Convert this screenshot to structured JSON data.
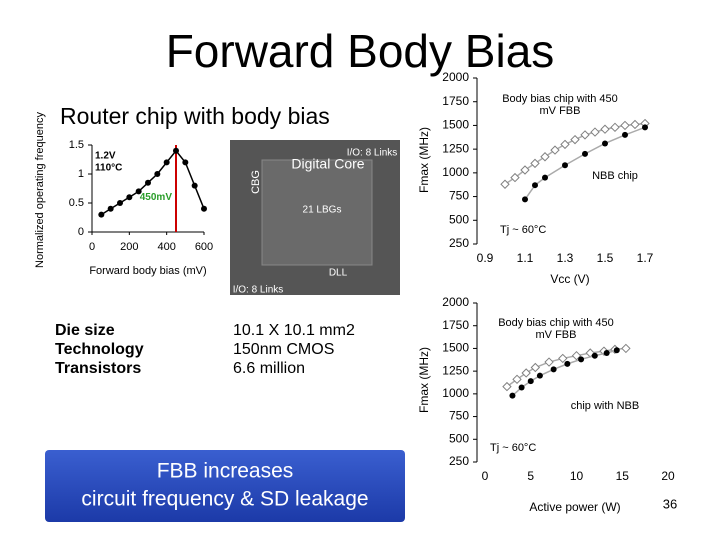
{
  "title": "Forward Body Bias",
  "subtitle": "Router chip with body bias",
  "die_labels": [
    "Digital Core",
    "I/O: 8 Links",
    "CBG",
    "21 LBGs",
    "DLL"
  ],
  "table": {
    "rows": [
      [
        "Die size",
        "10.1 X 10.1 mm2"
      ],
      [
        "Technology",
        "150nm CMOS"
      ],
      [
        "Transistors",
        "6.6 million"
      ]
    ]
  },
  "callout": {
    "lines": [
      "FBB increases",
      "circuit frequency & SD leakage"
    ]
  },
  "page_number": "36",
  "chart_data": [
    {
      "type": "line",
      "xlabel": "Forward body bias (mV)",
      "ylabel": "Normalized operating frequency",
      "annotations": [
        "1.2V",
        "110°C"
      ],
      "x": [
        50,
        100,
        150,
        200,
        250,
        300,
        350,
        400,
        450,
        500,
        550,
        600
      ],
      "values": [
        0.3,
        0.4,
        0.5,
        0.6,
        0.7,
        0.85,
        1.0,
        1.2,
        1.4,
        1.2,
        0.8,
        0.4
      ],
      "color": "#000000",
      "marker": "circle",
      "vline": {
        "value": 450,
        "label": "450mV",
        "color": "#cc0000"
      },
      "xlim": [
        0,
        600
      ],
      "xticks": [
        0,
        200,
        400,
        600
      ],
      "ylim": [
        0,
        1.5
      ],
      "yticks": [
        0,
        0.5,
        1,
        1.5
      ]
    },
    {
      "type": "scatter",
      "xlabel": "Vcc (V)",
      "ylabel": "Fmax (MHz)",
      "annotations": [
        "Tj ~ 60°C"
      ],
      "series": [
        {
          "name": "Body bias chip with 450 mV FBB",
          "color": "#808080",
          "marker": "open-diamond",
          "x": [
            1.0,
            1.05,
            1.1,
            1.15,
            1.2,
            1.25,
            1.3,
            1.35,
            1.4,
            1.45,
            1.5,
            1.55,
            1.6,
            1.65,
            1.7
          ],
          "values": [
            880,
            950,
            1030,
            1100,
            1170,
            1240,
            1300,
            1350,
            1400,
            1430,
            1460,
            1480,
            1500,
            1510,
            1520
          ]
        },
        {
          "name": "NBB chip",
          "color": "#000000",
          "marker": "circle",
          "x": [
            1.1,
            1.15,
            1.2,
            1.3,
            1.4,
            1.5,
            1.6,
            1.7
          ],
          "values": [
            720,
            870,
            950,
            1080,
            1200,
            1310,
            1400,
            1480
          ]
        }
      ],
      "xlim": [
        0.9,
        1.7
      ],
      "xticks": [
        0.9,
        1.1,
        1.3,
        1.5,
        1.7
      ],
      "ylim": [
        250,
        2000
      ],
      "yticks": [
        250,
        500,
        750,
        1000,
        1250,
        1500,
        1750,
        2000
      ]
    },
    {
      "type": "scatter",
      "xlabel": "Active power (W)",
      "ylabel": "Fmax (MHz)",
      "annotations": [
        "Tj ~ 60°C"
      ],
      "series": [
        {
          "name": "Body bias chip with 450 mV FBB",
          "color": "#808080",
          "marker": "open-diamond",
          "x": [
            2.4,
            3.5,
            4.5,
            5.5,
            7,
            8.5,
            10,
            11.5,
            13,
            14.2,
            15.4
          ],
          "values": [
            1080,
            1160,
            1230,
            1290,
            1350,
            1390,
            1420,
            1450,
            1470,
            1490,
            1500
          ]
        },
        {
          "name": "chip with NBB",
          "color": "#000000",
          "marker": "circle",
          "x": [
            3,
            4,
            5,
            6,
            7.5,
            9,
            10.5,
            12,
            13.3,
            14.4
          ],
          "values": [
            980,
            1070,
            1140,
            1200,
            1270,
            1330,
            1380,
            1420,
            1450,
            1480
          ]
        }
      ],
      "xlim": [
        0,
        20
      ],
      "xticks": [
        0,
        5,
        10,
        15,
        20
      ],
      "ylim": [
        250,
        2000
      ],
      "yticks": [
        250,
        500,
        750,
        1000,
        1250,
        1500,
        1750,
        2000
      ]
    }
  ]
}
